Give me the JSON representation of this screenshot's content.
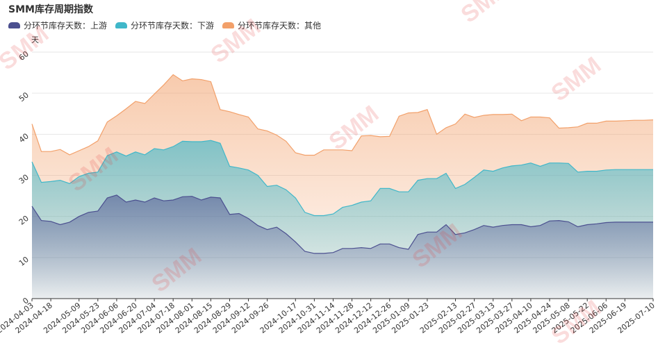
{
  "title": "SMM库存周期指数",
  "unit": "天",
  "legend": [
    {
      "label": "分环节库存天数：上游",
      "color": "#4b4f8f"
    },
    {
      "label": "分环节库存天数：下游",
      "color": "#40b7c9"
    },
    {
      "label": "分环节库存天数：其他",
      "color": "#f2a06a"
    }
  ],
  "watermark": "SMM",
  "chart_data": {
    "type": "area",
    "stacked": true,
    "ylim": [
      0,
      60
    ],
    "yticks": [
      0,
      10,
      20,
      30,
      40,
      50,
      60
    ],
    "grid": true,
    "x": [
      "2024-04-03",
      "2024-04-10",
      "2024-04-18",
      "2024-04-25",
      "2024-05-01",
      "2024-05-09",
      "2024-05-16",
      "2024-05-23",
      "2024-05-30",
      "2024-06-06",
      "2024-06-13",
      "2024-06-20",
      "2024-06-27",
      "2024-07-04",
      "2024-07-11",
      "2024-07-18",
      "2024-07-25",
      "2024-08-01",
      "2024-08-08",
      "2024-08-15",
      "2024-08-22",
      "2024-08-29",
      "2024-09-05",
      "2024-09-12",
      "2024-09-19",
      "2024-09-26",
      "2024-10-03",
      "2024-10-10",
      "2024-10-17",
      "2024-10-24",
      "2024-10-31",
      "2024-11-07",
      "2024-11-14",
      "2024-11-21",
      "2024-11-28",
      "2024-12-05",
      "2024-12-12",
      "2024-12-19",
      "2024-12-26",
      "2025-01-02",
      "2025-01-09",
      "2025-01-16",
      "2025-01-23",
      "2025-01-30",
      "2025-02-06",
      "2025-02-13",
      "2025-02-20",
      "2025-02-27",
      "2025-03-06",
      "2025-03-13",
      "2025-03-20",
      "2025-03-27",
      "2025-04-03",
      "2025-04-10",
      "2025-04-17",
      "2025-04-24",
      "2025-05-01",
      "2025-05-08",
      "2025-05-15",
      "2025-05-22",
      "2025-05-29",
      "2025-06-06",
      "2025-06-12",
      "2025-06-19",
      "2025-06-26",
      "2025-07-03",
      "2025-07-10"
    ],
    "xticks": [
      "2024-04-03",
      "2024-04-18",
      "2024-05-09",
      "2024-05-23",
      "2024-06-06",
      "2024-06-20",
      "2024-07-04",
      "2024-07-18",
      "2024-08-01",
      "2024-08-15",
      "2024-08-29",
      "2024-09-12",
      "2024-09-26",
      "2024-10-17",
      "2024-10-31",
      "2024-11-14",
      "2024-11-28",
      "2024-12-12",
      "2024-12-26",
      "2025-01-09",
      "2025-01-23",
      "2025-02-13",
      "2025-02-27",
      "2025-03-13",
      "2025-03-27",
      "2025-04-10",
      "2025-04-24",
      "2025-05-08",
      "2025-05-22",
      "2025-06-06",
      "2025-06-19",
      "2025-07-10"
    ],
    "series": [
      {
        "name": "分环节库存天数：上游",
        "values": [
          22.5,
          19,
          18.8,
          18,
          18.6,
          20,
          21,
          21.3,
          24.5,
          25.2,
          23.5,
          24,
          23.5,
          24.5,
          23.8,
          24,
          24.8,
          24.9,
          24,
          24.7,
          24.5,
          20.5,
          20.7,
          19.5,
          17.8,
          16.8,
          17.4,
          15.8,
          13.8,
          11.5,
          11,
          11,
          11.2,
          12.2,
          12.2,
          12.4,
          12.2,
          13.3,
          13.3,
          12.4,
          12,
          15.6,
          16.2,
          16.2,
          18,
          15.6,
          16,
          16.8,
          17.8,
          17.4,
          17.8,
          18,
          18,
          17.5,
          17.8,
          18.9,
          19,
          18.7,
          17.5,
          18,
          18.2,
          18.5,
          18.6,
          18.6,
          18.6,
          18.6,
          18.6
        ]
      },
      {
        "name": "分环节库存天数：下游",
        "values": [
          33.3,
          28.3,
          28.5,
          28.8,
          28,
          29.7,
          30.5,
          30.8,
          34.8,
          35.7,
          34.7,
          35.7,
          35,
          36.5,
          36.2,
          37,
          38.3,
          38.2,
          38.2,
          38.5,
          37.8,
          32.2,
          31.8,
          31.3,
          30,
          27.3,
          27.6,
          26.5,
          24.5,
          21,
          20.2,
          20.2,
          20.6,
          22.2,
          22.7,
          23.5,
          23.8,
          26.8,
          26.8,
          26,
          26,
          28.8,
          29.2,
          29.2,
          30.5,
          26.8,
          27.8,
          29.5,
          31.3,
          31,
          31.8,
          32.3,
          32.5,
          33,
          32.2,
          33,
          33,
          32.9,
          30.8,
          31,
          31,
          31.3,
          31.4,
          31.4,
          31.4,
          31.4,
          31.4
        ]
      },
      {
        "name": "分环节库存天数：其他",
        "values": [
          42.5,
          35.8,
          35.8,
          36.3,
          35,
          36,
          37,
          38.4,
          43,
          44.5,
          46.2,
          48,
          47.5,
          49.8,
          52,
          54.5,
          53,
          53.5,
          53.3,
          52.8,
          46,
          45.5,
          44.8,
          44.2,
          41.3,
          40.8,
          39.8,
          38.3,
          35.5,
          34.9,
          34.9,
          36.2,
          36.2,
          36.2,
          36,
          39.6,
          39.7,
          39.4,
          39.5,
          44.4,
          45.2,
          45.3,
          46,
          40,
          41.6,
          42.5,
          44.9,
          44.1,
          44.6,
          44.8,
          44.8,
          44.9,
          43.3,
          44.2,
          44.2,
          44,
          41.5,
          41.6,
          41.8,
          42.7,
          42.7,
          43.2,
          43.2,
          43.3,
          43.4,
          43.4,
          43.5
        ]
      }
    ]
  }
}
